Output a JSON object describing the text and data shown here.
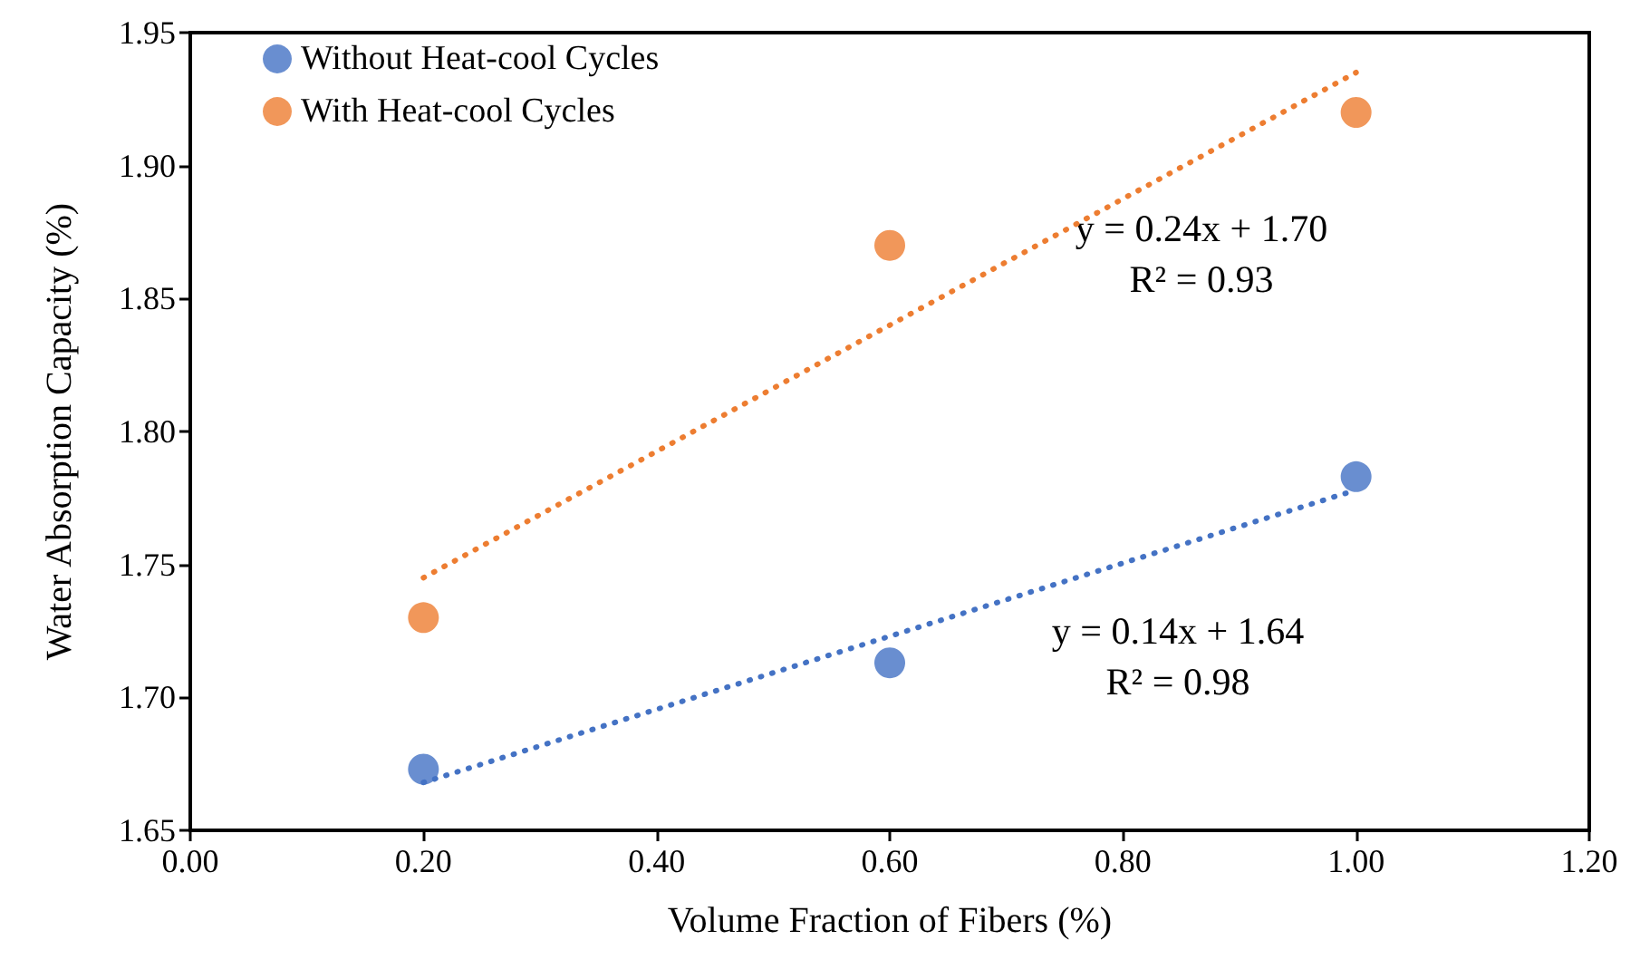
{
  "chart_data": {
    "type": "scatter",
    "xlabel": "Volume Fraction of Fibers (%)",
    "ylabel": "Water Absorption Capacity (%)",
    "x": [
      0.2,
      0.6,
      1.0
    ],
    "series": [
      {
        "name": "Without Heat-cool Cycles",
        "color": "#4472c4",
        "values": [
          1.673,
          1.713,
          1.783
        ]
      },
      {
        "name": "With Heat-cool Cycles",
        "color": "#ed7d31",
        "values": [
          1.73,
          1.87,
          1.92
        ]
      },
      {
        "type": "line",
        "color": "#4472c4",
        "values": [
          1.668,
          1.723,
          1.778
        ],
        "line_style": "dotted",
        "marker": "none"
      },
      {
        "type": "line",
        "color": "#ed7d31",
        "values": [
          1.745,
          1.84,
          1.935
        ],
        "line_style": "dotted",
        "marker": "none"
      }
    ],
    "marker": "circle",
    "xlim": [
      0,
      1.2
    ],
    "xticks": [
      {
        "value": 0,
        "label": "0.00"
      },
      {
        "value": 0.2,
        "label": "0.20"
      },
      {
        "value": 0.4,
        "label": "0.40"
      },
      {
        "value": 0.6,
        "label": "0.60"
      },
      {
        "value": 0.8,
        "label": "0.80"
      },
      {
        "value": 1.0,
        "label": "1.00"
      },
      {
        "value": 1.2,
        "label": "1.20"
      }
    ],
    "ylim": [
      1.65,
      1.95
    ],
    "yticks": [
      {
        "value": 1.65,
        "label": "1.65"
      },
      {
        "value": 1.7,
        "label": "1.70"
      },
      {
        "value": 1.75,
        "label": "1.75"
      },
      {
        "value": 1.8,
        "label": "1.80"
      },
      {
        "value": 1.85,
        "label": "1.85"
      },
      {
        "value": 1.9,
        "label": "1.90"
      },
      {
        "value": 1.95,
        "label": "1.95"
      }
    ],
    "grid": false,
    "legend": "top left",
    "annotations": [
      "y = 0.24x + 1.70\nR² = 0.93",
      "y = 0.14x + 1.64\nR² = 0.98"
    ]
  }
}
